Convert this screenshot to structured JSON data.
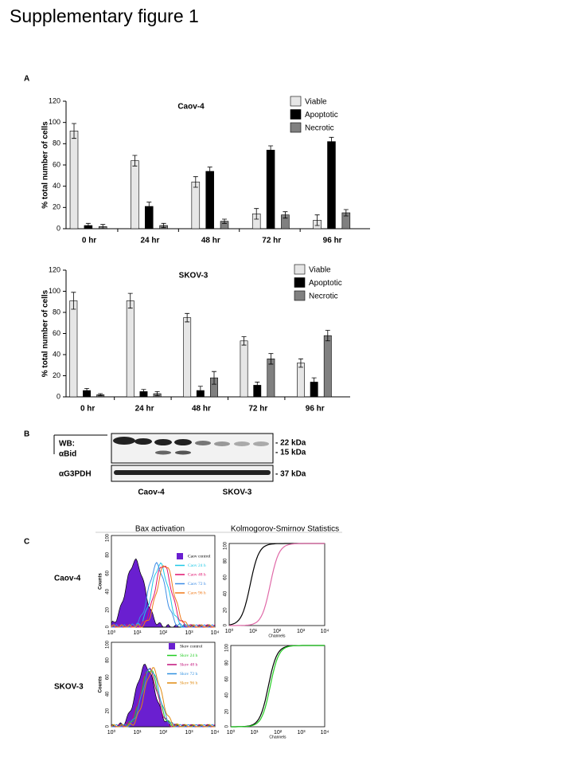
{
  "title": "Supplementary figure 1",
  "panels": [
    "A",
    "B",
    "C"
  ],
  "chart_data": [
    {
      "type": "bar",
      "title": "Caov-4",
      "ylabel": "% total number of cells",
      "categories": [
        "0 hr",
        "24 hr",
        "48 hr",
        "72 hr",
        "96 hr"
      ],
      "series": [
        {
          "name": "Viable",
          "color": "#e6e6e6",
          "values": [
            92,
            64,
            44,
            14,
            8
          ],
          "errors": [
            7,
            5,
            5,
            5,
            5
          ]
        },
        {
          "name": "Apoptotic",
          "color": "#000000",
          "values": [
            3,
            21,
            54,
            74,
            82
          ],
          "errors": [
            2,
            4,
            4,
            4,
            4
          ]
        },
        {
          "name": "Necrotic",
          "color": "#808080",
          "values": [
            2,
            3,
            7,
            13,
            15
          ],
          "errors": [
            2,
            2,
            2,
            3,
            3
          ]
        }
      ],
      "ylim": [
        0,
        120
      ],
      "yticks": [
        0,
        20,
        40,
        60,
        80,
        100,
        120
      ]
    },
    {
      "type": "bar",
      "title": "SKOV-3",
      "ylabel": "% total number of cells",
      "categories": [
        "0 hr",
        "24 hr",
        "48 hr",
        "72 hr",
        "96 hr"
      ],
      "series": [
        {
          "name": "Viable",
          "color": "#e6e6e6",
          "values": [
            91,
            91,
            75,
            53,
            32
          ],
          "errors": [
            8,
            7,
            4,
            4,
            4
          ]
        },
        {
          "name": "Apoptotic",
          "color": "#000000",
          "values": [
            6,
            5,
            6,
            11,
            14
          ],
          "errors": [
            2,
            2,
            4,
            3,
            4
          ]
        },
        {
          "name": "Necrotic",
          "color": "#808080",
          "values": [
            2,
            3,
            18,
            36,
            58
          ],
          "errors": [
            1,
            2,
            6,
            5,
            5
          ]
        }
      ],
      "ylim": [
        0,
        120
      ],
      "yticks": [
        0,
        20,
        40,
        60,
        80,
        100,
        120
      ]
    }
  ],
  "panel_b": {
    "wb": "WB:",
    "antibody": "αBid",
    "control": "αG3PDH",
    "markers": [
      "- 22 kDa",
      "- 15 kDa",
      "- 37 kDa"
    ],
    "lines": [
      "Caov-4",
      "SKOV-3"
    ]
  },
  "panel_c": {
    "headers": [
      "Bax activation",
      "Kolmogorov-Smirnov Statistics"
    ],
    "rows": [
      "Caov-4",
      "SKOV-3"
    ],
    "counts": "Counts",
    "channels": "Channels",
    "counts_ticks": [
      0,
      20,
      40,
      60,
      80,
      100
    ],
    "channel_ticks": [
      "10⁰",
      "10¹",
      "10²",
      "10³",
      "10⁴"
    ],
    "legend_caov": [
      "Caov control",
      "Caov 24 h",
      "Caov 48 h",
      "Caov 72 h",
      "Caov 96 h"
    ],
    "legend_skov": [
      "Skov control",
      "Skov 24 h",
      "Skov 48 h",
      "Skov 72 h",
      "Skov 96 h"
    ]
  }
}
